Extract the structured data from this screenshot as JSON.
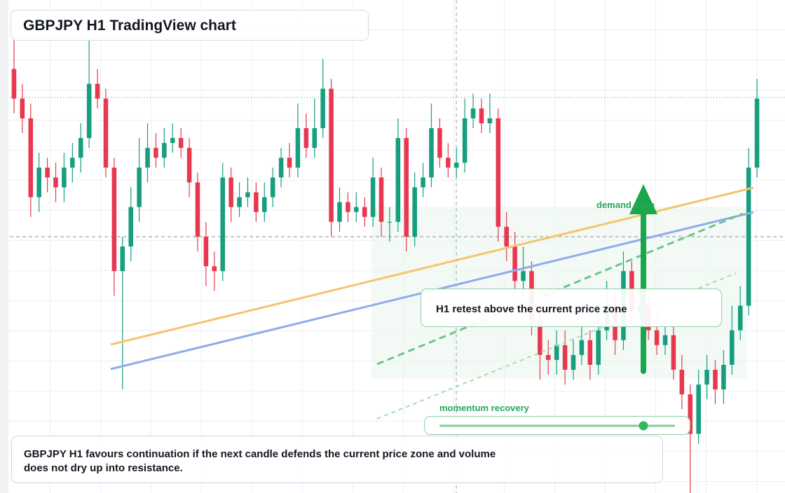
{
  "chart_data": {
    "type": "candlestick",
    "title": "GBPJPY H1 TradingView chart",
    "annotations": {
      "demand_zone": "demand zone",
      "callout": "H1 retest above the current price zone",
      "momentum": "momentum recovery",
      "note": "GBPJPY H1 favours continuation if the next candle defends the current price zone and volume does not dry up into resistance."
    },
    "up_color": "#169e7e",
    "down_color": "#e8384f",
    "ylim": [
      0,
      100
    ],
    "open": [
      86,
      80,
      76,
      60,
      66,
      64,
      62,
      66,
      68,
      72,
      83,
      80,
      66,
      45,
      50,
      58,
      66,
      70,
      68,
      71,
      72,
      70,
      63,
      52,
      46,
      45,
      64,
      58,
      60,
      61,
      57,
      60,
      64,
      68,
      66,
      74,
      70,
      74,
      82,
      55,
      59,
      57,
      58,
      56,
      64,
      55,
      55,
      72,
      52,
      62,
      64,
      74,
      68,
      66,
      67,
      76,
      78,
      75,
      76,
      54,
      50,
      43,
      45,
      35,
      28,
      27,
      30,
      25,
      28,
      31,
      26,
      33,
      38,
      31,
      45,
      37,
      38,
      33,
      30,
      32,
      25,
      20,
      12,
      22,
      25,
      21,
      26,
      33,
      38,
      66
    ],
    "high": [
      93,
      83,
      79,
      69,
      68,
      67,
      69,
      71,
      75,
      92,
      86,
      82,
      68,
      52,
      62,
      72,
      75,
      73,
      74,
      75,
      74,
      72,
      65,
      55,
      49,
      67,
      66,
      63,
      64,
      63,
      63,
      66,
      70,
      71,
      79,
      77,
      80,
      88,
      84,
      62,
      61,
      61,
      60,
      68,
      66,
      58,
      76,
      74,
      65,
      67,
      79,
      76,
      71,
      70,
      80,
      81,
      80,
      81,
      78,
      57,
      53,
      50,
      47,
      38,
      31,
      33,
      33,
      31,
      34,
      33,
      37,
      43,
      41,
      49,
      47,
      41,
      40,
      36,
      35,
      34,
      28,
      22,
      25,
      28,
      27,
      29,
      38,
      42,
      70,
      84
    ],
    "low": [
      77,
      73,
      56,
      57,
      61,
      59,
      59,
      63,
      65,
      70,
      78,
      64,
      40,
      21,
      47,
      55,
      63,
      66,
      66,
      69,
      68,
      60,
      49,
      42,
      41,
      43,
      55,
      56,
      58,
      55,
      55,
      58,
      62,
      64,
      64,
      68,
      68,
      72,
      52,
      53,
      55,
      55,
      54,
      54,
      52,
      51,
      53,
      49,
      50,
      60,
      62,
      66,
      64,
      64,
      65,
      74,
      73,
      73,
      51,
      47,
      40,
      40,
      32,
      23,
      24,
      24,
      22,
      23,
      26,
      23,
      24,
      31,
      28,
      29,
      35,
      35,
      31,
      28,
      28,
      23,
      17,
      0,
      10,
      19,
      18,
      18,
      24,
      31,
      36,
      64
    ],
    "close": [
      80,
      76,
      60,
      66,
      64,
      62,
      66,
      68,
      72,
      83,
      80,
      66,
      45,
      50,
      58,
      66,
      70,
      68,
      71,
      72,
      70,
      63,
      52,
      46,
      45,
      64,
      58,
      60,
      61,
      57,
      60,
      64,
      68,
      66,
      74,
      70,
      74,
      82,
      55,
      59,
      57,
      58,
      56,
      64,
      55,
      55,
      72,
      52,
      62,
      64,
      74,
      68,
      66,
      67,
      76,
      78,
      75,
      76,
      54,
      50,
      43,
      45,
      35,
      28,
      27,
      30,
      25,
      28,
      31,
      26,
      33,
      38,
      31,
      45,
      37,
      38,
      33,
      30,
      32,
      25,
      20,
      12,
      22,
      25,
      21,
      26,
      33,
      38,
      66,
      80
    ]
  }
}
